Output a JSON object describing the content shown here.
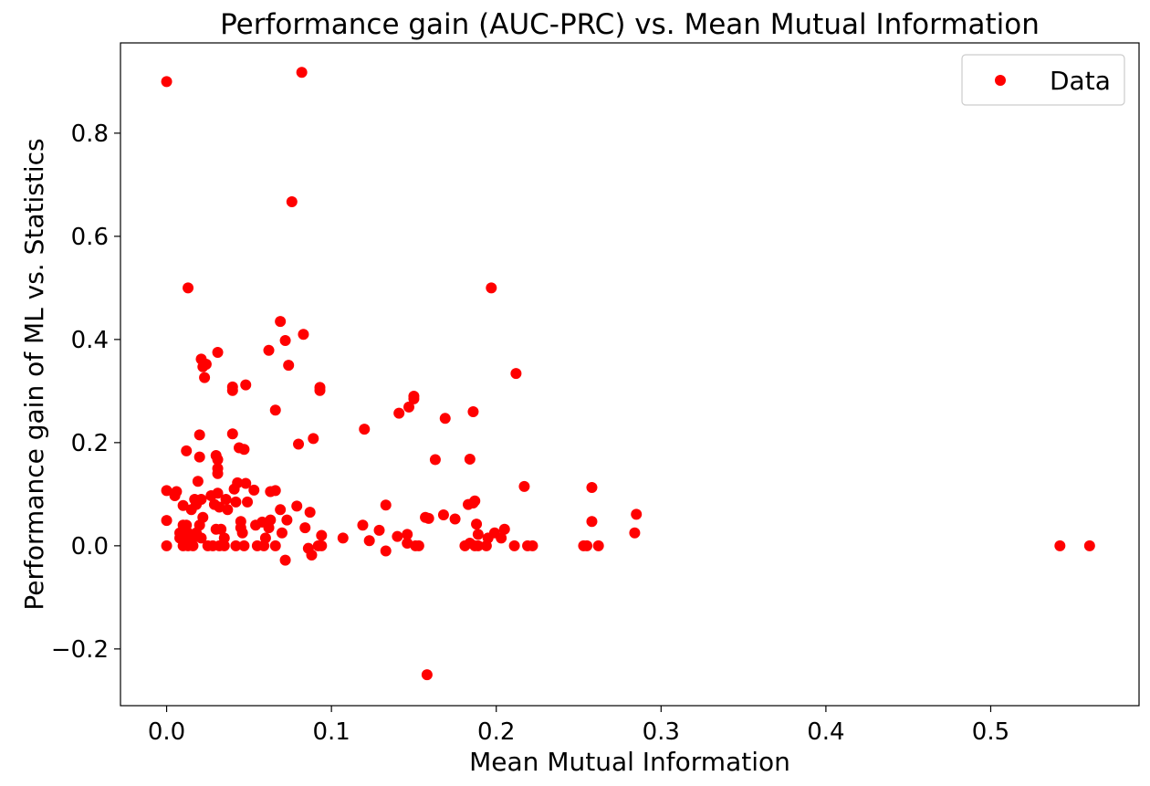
{
  "chart_data": {
    "type": "scatter",
    "title": "Performance gain (AUC-PRC) vs. Mean Mutual Information",
    "xlabel": "Mean Mutual Information",
    "ylabel": "Performance gain of ML vs. Statistics",
    "xlim": [
      -0.028,
      0.59
    ],
    "ylim": [
      -0.31,
      0.975
    ],
    "xticks": [
      0.0,
      0.1,
      0.2,
      0.3,
      0.4,
      0.5
    ],
    "xtick_labels": [
      "0.0",
      "0.1",
      "0.2",
      "0.3",
      "0.4",
      "0.5"
    ],
    "yticks": [
      -0.2,
      0.0,
      0.2,
      0.4,
      0.6,
      0.8
    ],
    "ytick_labels": [
      "−0.2",
      "0.0",
      "0.2",
      "0.4",
      "0.6",
      "0.8"
    ],
    "grid": false,
    "legend": {
      "position": "top-right"
    },
    "series": [
      {
        "name": "Data",
        "color": "#ff0000",
        "marker": "circle",
        "points": [
          [
            0.0,
            0.9
          ],
          [
            0.082,
            0.918
          ],
          [
            0.076,
            0.667
          ],
          [
            0.013,
            0.5
          ],
          [
            0.197,
            0.5
          ],
          [
            0.069,
            0.435
          ],
          [
            0.083,
            0.41
          ],
          [
            0.072,
            0.398
          ],
          [
            0.062,
            0.379
          ],
          [
            0.031,
            0.375
          ],
          [
            0.021,
            0.362
          ],
          [
            0.022,
            0.347
          ],
          [
            0.024,
            0.352
          ],
          [
            0.074,
            0.35
          ],
          [
            0.212,
            0.334
          ],
          [
            0.023,
            0.326
          ],
          [
            0.048,
            0.312
          ],
          [
            0.04,
            0.308
          ],
          [
            0.04,
            0.301
          ],
          [
            0.093,
            0.307
          ],
          [
            0.093,
            0.301
          ],
          [
            0.15,
            0.29
          ],
          [
            0.15,
            0.285
          ],
          [
            0.147,
            0.269
          ],
          [
            0.066,
            0.263
          ],
          [
            0.141,
            0.257
          ],
          [
            0.186,
            0.26
          ],
          [
            0.169,
            0.247
          ],
          [
            0.12,
            0.226
          ],
          [
            0.02,
            0.215
          ],
          [
            0.04,
            0.217
          ],
          [
            0.089,
            0.208
          ],
          [
            0.08,
            0.197
          ],
          [
            0.044,
            0.19
          ],
          [
            0.047,
            0.187
          ],
          [
            0.012,
            0.184
          ],
          [
            0.03,
            0.175
          ],
          [
            0.02,
            0.172
          ],
          [
            0.031,
            0.167
          ],
          [
            0.163,
            0.167
          ],
          [
            0.184,
            0.168
          ],
          [
            0.031,
            0.15
          ],
          [
            0.031,
            0.14
          ],
          [
            0.019,
            0.125
          ],
          [
            0.043,
            0.122
          ],
          [
            0.048,
            0.121
          ],
          [
            0.217,
            0.115
          ],
          [
            0.258,
            0.113
          ],
          [
            0.0,
            0.107
          ],
          [
            0.006,
            0.105
          ],
          [
            0.041,
            0.11
          ],
          [
            0.053,
            0.108
          ],
          [
            0.063,
            0.105
          ],
          [
            0.066,
            0.107
          ],
          [
            0.031,
            0.102
          ],
          [
            0.005,
            0.097
          ],
          [
            0.027,
            0.097
          ],
          [
            0.017,
            0.09
          ],
          [
            0.021,
            0.09
          ],
          [
            0.036,
            0.09
          ],
          [
            0.042,
            0.085
          ],
          [
            0.049,
            0.085
          ],
          [
            0.029,
            0.08
          ],
          [
            0.01,
            0.078
          ],
          [
            0.018,
            0.08
          ],
          [
            0.032,
            0.075
          ],
          [
            0.079,
            0.077
          ],
          [
            0.133,
            0.079
          ],
          [
            0.183,
            0.08
          ],
          [
            0.186,
            0.083
          ],
          [
            0.187,
            0.087
          ],
          [
            0.015,
            0.07
          ],
          [
            0.037,
            0.07
          ],
          [
            0.069,
            0.07
          ],
          [
            0.087,
            0.065
          ],
          [
            0.168,
            0.06
          ],
          [
            0.285,
            0.061
          ],
          [
            0.157,
            0.055
          ],
          [
            0.159,
            0.053
          ],
          [
            0.175,
            0.052
          ],
          [
            0.022,
            0.055
          ],
          [
            0.045,
            0.047
          ],
          [
            0.073,
            0.05
          ],
          [
            0.0,
            0.049
          ],
          [
            0.058,
            0.046
          ],
          [
            0.063,
            0.05
          ],
          [
            0.258,
            0.047
          ],
          [
            0.01,
            0.04
          ],
          [
            0.012,
            0.04
          ],
          [
            0.02,
            0.04
          ],
          [
            0.054,
            0.04
          ],
          [
            0.119,
            0.04
          ],
          [
            0.188,
            0.042
          ],
          [
            0.062,
            0.035
          ],
          [
            0.03,
            0.032
          ],
          [
            0.033,
            0.032
          ],
          [
            0.045,
            0.035
          ],
          [
            0.084,
            0.035
          ],
          [
            0.129,
            0.03
          ],
          [
            0.205,
            0.032
          ],
          [
            0.008,
            0.025
          ],
          [
            0.013,
            0.025
          ],
          [
            0.018,
            0.025
          ],
          [
            0.046,
            0.025
          ],
          [
            0.07,
            0.025
          ],
          [
            0.146,
            0.022
          ],
          [
            0.189,
            0.022
          ],
          [
            0.199,
            0.025
          ],
          [
            0.284,
            0.025
          ],
          [
            0.008,
            0.015
          ],
          [
            0.012,
            0.015
          ],
          [
            0.016,
            0.015
          ],
          [
            0.021,
            0.015
          ],
          [
            0.035,
            0.015
          ],
          [
            0.06,
            0.015
          ],
          [
            0.094,
            0.02
          ],
          [
            0.107,
            0.015
          ],
          [
            0.14,
            0.018
          ],
          [
            0.195,
            0.015
          ],
          [
            0.203,
            0.015
          ],
          [
            0.0,
            0.0
          ],
          [
            0.01,
            0.0
          ],
          [
            0.013,
            0.0
          ],
          [
            0.016,
            0.0
          ],
          [
            0.025,
            0.0
          ],
          [
            0.028,
            0.0
          ],
          [
            0.032,
            0.0
          ],
          [
            0.035,
            0.0
          ],
          [
            0.042,
            0.0
          ],
          [
            0.047,
            0.0
          ],
          [
            0.055,
            0.0
          ],
          [
            0.059,
            0.0
          ],
          [
            0.066,
            0.0
          ],
          [
            0.092,
            0.0
          ],
          [
            0.094,
            0.0
          ],
          [
            0.123,
            0.01
          ],
          [
            0.146,
            0.005
          ],
          [
            0.151,
            0.0
          ],
          [
            0.153,
            0.0
          ],
          [
            0.181,
            0.0
          ],
          [
            0.184,
            0.005
          ],
          [
            0.187,
            0.0
          ],
          [
            0.189,
            0.0
          ],
          [
            0.194,
            0.0
          ],
          [
            0.211,
            0.0
          ],
          [
            0.219,
            0.0
          ],
          [
            0.222,
            0.0
          ],
          [
            0.253,
            0.0
          ],
          [
            0.255,
            0.0
          ],
          [
            0.262,
            0.0
          ],
          [
            0.542,
            0.0
          ],
          [
            0.56,
            0.0
          ],
          [
            0.086,
            -0.005
          ],
          [
            0.133,
            -0.01
          ],
          [
            0.088,
            -0.018
          ],
          [
            0.072,
            -0.028
          ],
          [
            0.158,
            -0.25
          ]
        ]
      }
    ]
  }
}
